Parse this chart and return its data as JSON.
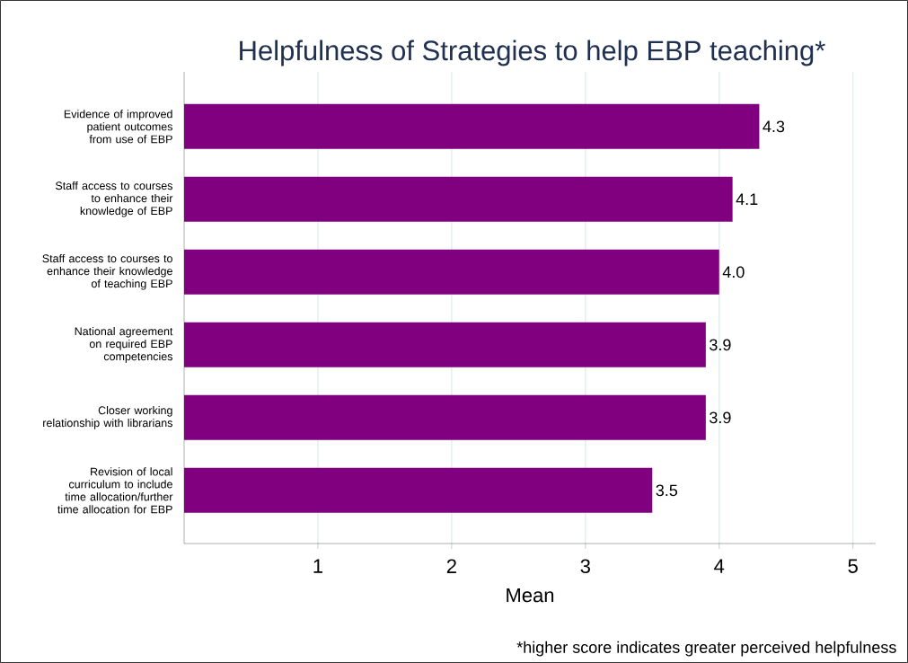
{
  "chart_data": {
    "type": "bar",
    "orientation": "horizontal",
    "title": "Helpfulness of Strategies to help EBP teaching*",
    "xlabel": "Mean",
    "categories": [
      "Evidence of improved patient outcomes from use of EBP",
      "Staff access to courses to enhance their knowledge of EBP",
      "Staff access to courses to enhance their knowledge of teaching EBP",
      "National agreement on required EBP competencies",
      "Closer working relationship with librarians",
      "Revision of local curriculum to include time allocation/further time allocation for EBP"
    ],
    "values": [
      4.3,
      4.1,
      4.0,
      3.9,
      3.9,
      3.5
    ],
    "value_labels": [
      "4.3",
      "4.1",
      "4.0",
      "3.9",
      "3.9",
      "3.5"
    ],
    "color": "#800080",
    "xlim": [
      0,
      5.17
    ],
    "xticks": [
      1,
      2,
      3,
      4,
      5
    ],
    "grid": "x",
    "annotations": [
      "*higher score indicates greater perceived helpfulness"
    ]
  }
}
